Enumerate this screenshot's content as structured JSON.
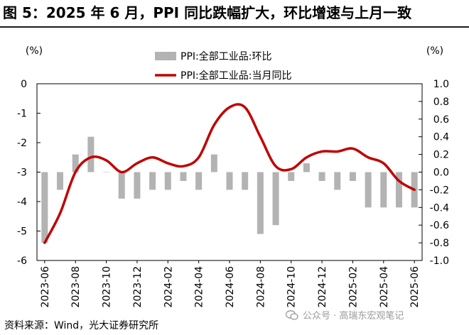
{
  "title": "图 5：2025 年 6 月，PPI 同比跌幅扩大，环比增速与上月一致",
  "source": "资料来源：Wind，光大证券研究所",
  "watermark": "公众号 · 高瑞东宏观笔记",
  "chart_data": {
    "type": "bar+line",
    "left_unit": "(%)",
    "right_unit": "(%)",
    "left_axis": {
      "min": -6,
      "max": 0,
      "ticks": [
        "0",
        "-1",
        "-2",
        "-3",
        "-4",
        "-5",
        "-6"
      ]
    },
    "right_axis": {
      "min": -1.0,
      "max": 1.0,
      "ticks": [
        "1.0",
        "0.8",
        "0.6",
        "0.4",
        "0.2",
        "0.0",
        "-0.2",
        "-0.4",
        "-0.6",
        "-0.8",
        "-1.0"
      ]
    },
    "x_tick_labels": [
      "2023-06",
      "2023-08",
      "2023-10",
      "2023-12",
      "2024-02",
      "2024-04",
      "2024-06",
      "2024-08",
      "2024-10",
      "2024-12",
      "2025-02",
      "2025-04",
      "2025-06"
    ],
    "months": [
      "2023-06",
      "2023-07",
      "2023-08",
      "2023-09",
      "2023-10",
      "2023-11",
      "2023-12",
      "2024-01",
      "2024-02",
      "2024-03",
      "2024-04",
      "2024-05",
      "2024-06",
      "2024-07",
      "2024-08",
      "2024-09",
      "2024-10",
      "2024-11",
      "2024-12",
      "2025-01",
      "2025-02",
      "2025-03",
      "2025-04",
      "2025-05",
      "2025-06"
    ],
    "series": [
      {
        "name": "PPI:全部工业品:环比",
        "type": "bar",
        "axis": "right",
        "color": "#b3b3b3",
        "values": [
          -0.8,
          -0.2,
          0.2,
          0.4,
          0.0,
          -0.3,
          -0.3,
          -0.2,
          -0.2,
          -0.1,
          -0.2,
          0.2,
          -0.2,
          -0.2,
          -0.7,
          -0.6,
          -0.1,
          0.1,
          -0.1,
          -0.2,
          -0.1,
          -0.4,
          -0.4,
          -0.4,
          -0.4
        ]
      },
      {
        "name": "PPI:全部工业品:当月同比",
        "type": "line",
        "axis": "left",
        "color": "#c00000",
        "values": [
          -5.4,
          -4.4,
          -3.0,
          -2.5,
          -2.6,
          -3.0,
          -2.7,
          -2.5,
          -2.7,
          -2.8,
          -2.5,
          -1.4,
          -0.8,
          -0.8,
          -1.8,
          -2.8,
          -2.9,
          -2.5,
          -2.3,
          -2.3,
          -2.2,
          -2.5,
          -2.7,
          -3.3,
          -3.6
        ]
      }
    ]
  }
}
